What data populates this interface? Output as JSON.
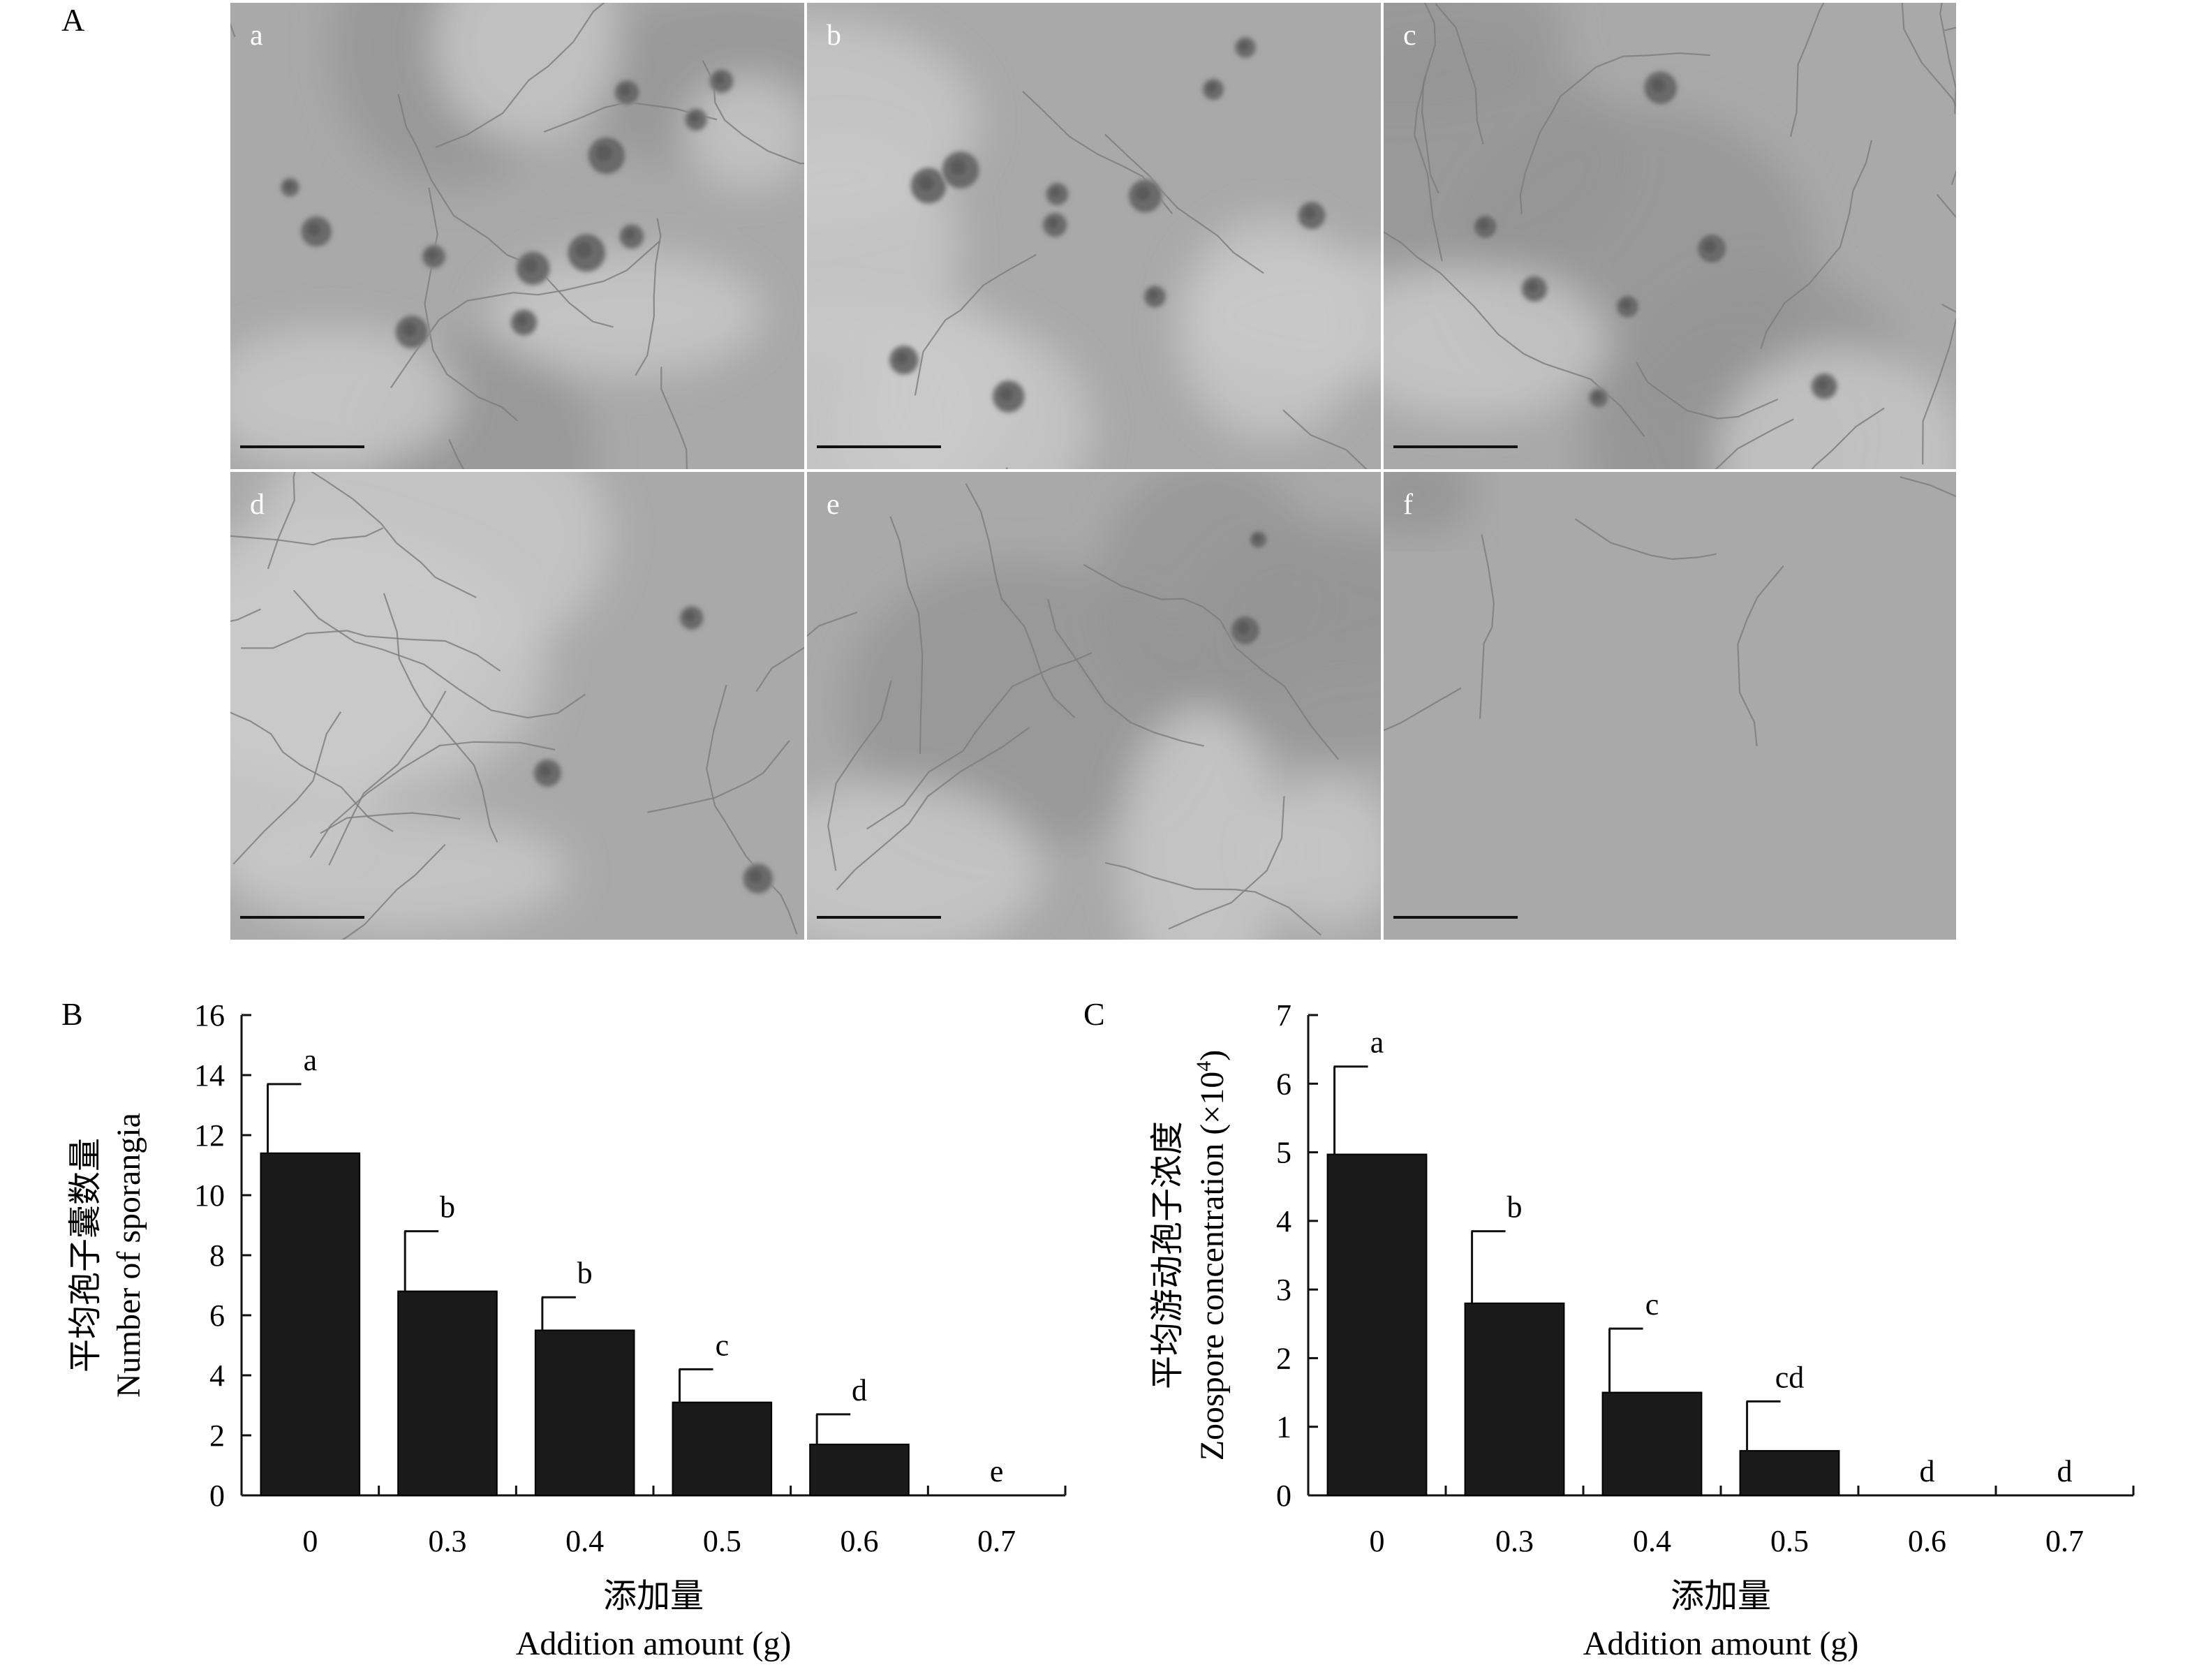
{
  "panel_a": {
    "label": "A",
    "subpanels": [
      {
        "label": "a",
        "sporangia": 12,
        "hyphae": "moderate",
        "tone": "mixed"
      },
      {
        "label": "b",
        "sporangia": 11,
        "hyphae": "few",
        "tone": "mixed"
      },
      {
        "label": "c",
        "sporangia": 7,
        "hyphae": "many",
        "tone": "mixed"
      },
      {
        "label": "d",
        "sporangia": 3,
        "hyphae": "many",
        "tone": "mixed"
      },
      {
        "label": "e",
        "sporangia": 2,
        "hyphae": "moderate",
        "tone": "mixed"
      },
      {
        "label": "f",
        "sporangia": 0,
        "hyphae": "few",
        "tone": "uniform"
      }
    ]
  },
  "chart_data": [
    {
      "panel_label": "B",
      "type": "bar",
      "categories": [
        "0",
        "0.3",
        "0.4",
        "0.5",
        "0.6",
        "0.7"
      ],
      "values": [
        11.4,
        6.8,
        5.5,
        3.1,
        1.7,
        0
      ],
      "errors": [
        2.3,
        2.0,
        1.1,
        1.1,
        1.0,
        0
      ],
      "significance": [
        "a",
        "b",
        "b",
        "c",
        "d",
        "e"
      ],
      "ylim": [
        0,
        16
      ],
      "yticks": [
        "0",
        "2",
        "4",
        "6",
        "8",
        "10",
        "12",
        "14",
        "16"
      ],
      "ylabel_zh": "平均孢子囊数量",
      "ylabel": "Number of sporangia",
      "xlabel_zh": "添加量",
      "xlabel": "Addition amount (g)",
      "bar_color": "#1a1a1a"
    },
    {
      "panel_label": "C",
      "type": "bar",
      "categories": [
        "0",
        "0.3",
        "0.4",
        "0.5",
        "0.6",
        "0.7"
      ],
      "values": [
        4.97,
        2.8,
        1.5,
        0.65,
        0,
        0
      ],
      "errors": [
        1.28,
        1.05,
        0.93,
        0.72,
        0,
        0
      ],
      "significance": [
        "a",
        "b",
        "c",
        "cd",
        "d",
        "d"
      ],
      "ylim": [
        0,
        7
      ],
      "yticks": [
        "0",
        "1",
        "2",
        "3",
        "4",
        "5",
        "6",
        "7"
      ],
      "ylabel_zh": "平均游动孢子浓度",
      "ylabel": "Zoospore concentration (×10",
      "ylabel_sup": "4",
      "ylabel_end": ")",
      "xlabel_zh": "添加量",
      "xlabel": "Addition amount (g)",
      "bar_color": "#1a1a1a"
    }
  ]
}
